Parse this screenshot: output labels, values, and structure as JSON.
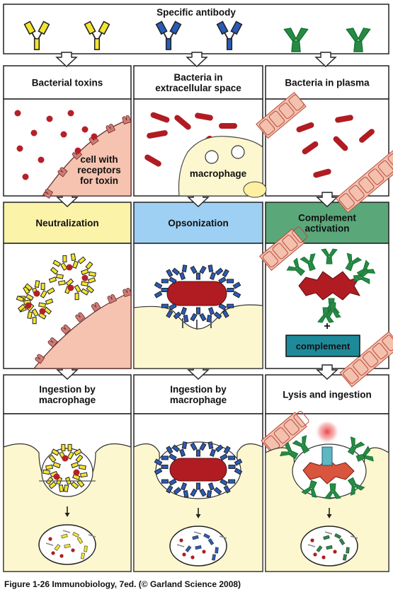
{
  "top": {
    "title": "Specific antibody"
  },
  "columns": [
    {
      "row1": [
        "Bacterial toxins"
      ],
      "row1_overlay": [
        "cell with",
        "receptors",
        "for toxin"
      ],
      "mechanism": [
        "Neutralization"
      ],
      "row3": [
        "Ingestion by",
        "macrophage"
      ]
    },
    {
      "row1": [
        "Bacteria in",
        "extracellular space"
      ],
      "row1_overlay": [
        "macrophage"
      ],
      "mechanism": [
        "Opsonization"
      ],
      "row3": [
        "Ingestion by",
        "macrophage"
      ]
    },
    {
      "row1": [
        "Bacteria in plasma"
      ],
      "row1_overlay": [],
      "mechanism": [
        "Complement",
        "activation"
      ],
      "row3": [
        "Lysis and ingestion"
      ]
    }
  ],
  "complement_box": {
    "plus": "+",
    "label": "complement"
  },
  "caption": "Figure 1-26  Immunobiology, 7ed. (© Garland Science 2008)",
  "colors": {
    "antibody_yellow": "#f3e530",
    "antibody_blue": "#2a5bb8",
    "antibody_green": "#2a8a45",
    "bacteria_red": "#b01c22",
    "toxin_red": "#b52028",
    "cell_pink": "#f5c3b0",
    "macrophage_cream": "#fdf7cf",
    "vessel_pink": "#f3c1ae",
    "neutralization_header": "#fbf3a8",
    "opsonization_header": "#9dd0f3",
    "complement_header": "#5aa87a",
    "complement_box": "#1e8a99"
  },
  "icons": [
    "antibody-icon",
    "bacterium-icon",
    "toxin-icon",
    "arrow-down-icon",
    "receptor-icon"
  ]
}
